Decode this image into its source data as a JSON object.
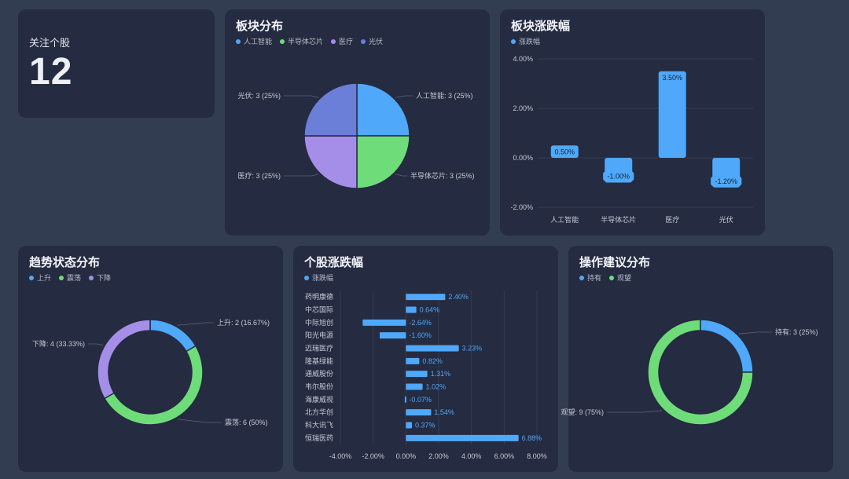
{
  "kpi": {
    "label": "关注个股",
    "value": "12"
  },
  "cards": {
    "sector_pie": {
      "title": "板块分布"
    },
    "sector_change": {
      "title": "板块涨跌幅"
    },
    "trend": {
      "title": "趋势状态分布"
    },
    "stock_change": {
      "title": "个股涨跌幅"
    },
    "advice": {
      "title": "操作建议分布"
    }
  },
  "colors": {
    "blue": "#4fa8f9",
    "green": "#6fdc7a",
    "purple": "#a58ee8",
    "indigo": "#6b7ed8",
    "bg": "#252b40"
  },
  "chart_data": [
    {
      "id": "sector_pie",
      "type": "pie",
      "title": "板块分布",
      "legend_position": "top-left",
      "slices": [
        {
          "name": "人工智能",
          "value": 3,
          "label": "人工智能: 3 (25%)",
          "color": "#4fa8f9"
        },
        {
          "name": "半导体芯片",
          "value": 3,
          "label": "半导体芯片: 3 (25%)",
          "color": "#6fdc7a"
        },
        {
          "name": "医疗",
          "value": 3,
          "label": "医疗: 3 (25%)",
          "color": "#a58ee8"
        },
        {
          "name": "光伏",
          "value": 3,
          "label": "光伏: 3 (25%)",
          "color": "#6b7ed8"
        }
      ]
    },
    {
      "id": "sector_change",
      "type": "bar",
      "title": "板块涨跌幅",
      "legend_position": "top-left",
      "series": [
        {
          "name": "涨跌幅",
          "values": [
            0.5,
            -1.0,
            3.5,
            -1.2
          ],
          "color": "#4fa8f9"
        }
      ],
      "categories": [
        "人工智能",
        "半导体芯片",
        "医疗",
        "光伏"
      ],
      "value_labels": [
        "0.50%",
        "-1.00%",
        "3.50%",
        "-1.20%"
      ],
      "ylim": [
        -2,
        4
      ],
      "yticks": [
        -2,
        0,
        2,
        4
      ],
      "ytick_labels": [
        "-2.00%",
        "0.00%",
        "2.00%",
        "4.00%"
      ],
      "grid": true
    },
    {
      "id": "trend",
      "type": "pie",
      "donut": true,
      "title": "趋势状态分布",
      "legend_position": "top-left",
      "slices": [
        {
          "name": "上升",
          "value": 2,
          "label": "上升: 2 (16.67%)",
          "color": "#4fa8f9"
        },
        {
          "name": "震荡",
          "value": 6,
          "label": "震荡: 6 (50%)",
          "color": "#6fdc7a"
        },
        {
          "name": "下降",
          "value": 4,
          "label": "下降: 4 (33.33%)",
          "color": "#a58ee8"
        }
      ]
    },
    {
      "id": "stock_change",
      "type": "bar",
      "orientation": "horizontal",
      "title": "个股涨跌幅",
      "legend_position": "top-left",
      "series": [
        {
          "name": "涨跌幅",
          "values": [
            2.4,
            0.64,
            -2.64,
            -1.6,
            3.23,
            0.82,
            1.31,
            1.02,
            -0.07,
            1.54,
            0.37,
            6.88
          ],
          "color": "#4fa8f9"
        }
      ],
      "categories": [
        "药明康德",
        "中芯国际",
        "中际旭创",
        "阳光电源",
        "迈瑞医疗",
        "隆基绿能",
        "通威股份",
        "韦尔股份",
        "海康威视",
        "北方华创",
        "科大讯飞",
        "恒瑞医药"
      ],
      "value_labels": [
        "2.40%",
        "0.64%",
        "-2.64%",
        "-1.60%",
        "3.23%",
        "0.82%",
        "1.31%",
        "1.02%",
        "-0.07%",
        "1.54%",
        "0.37%",
        "6.88%"
      ],
      "xlim": [
        -4,
        8
      ],
      "xticks": [
        -4,
        -2,
        0,
        2,
        4,
        6,
        8
      ],
      "xtick_labels": [
        "-4.00%",
        "-2.00%",
        "0.00%",
        "2.00%",
        "4.00%",
        "6.00%",
        "8.00%"
      ],
      "grid": true
    },
    {
      "id": "advice",
      "type": "pie",
      "donut": true,
      "title": "操作建议分布",
      "legend_position": "top-left",
      "slices": [
        {
          "name": "持有",
          "value": 3,
          "label": "持有: 3 (25%)",
          "color": "#4fa8f9"
        },
        {
          "name": "观望",
          "value": 9,
          "label": "观望: 9 (75%)",
          "color": "#6fdc7a"
        }
      ]
    }
  ]
}
